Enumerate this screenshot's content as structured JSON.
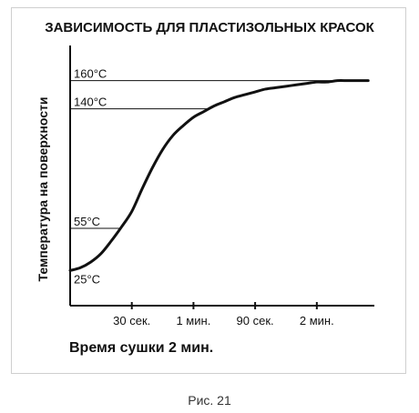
{
  "chart_data": {
    "type": "line",
    "title": "ЗАВИСИМОСТЬ ДЛЯ  ПЛАСТИЗОЛЬНЫХ КРАСОК",
    "xlabel": "Время сушки 2 мин.",
    "ylabel": "Температура на поверхности",
    "x_unit": "s",
    "y_unit": "°C",
    "xlim": [
      0,
      148
    ],
    "ylim": [
      0,
      185
    ],
    "grid": false,
    "x_ticks": [
      {
        "value": 30,
        "label": "30 сек."
      },
      {
        "value": 60,
        "label": "1 мин."
      },
      {
        "value": 90,
        "label": "90 сек."
      },
      {
        "value": 120,
        "label": "2 мин."
      }
    ],
    "reference_lines": [
      {
        "value": 160,
        "label": "160°C"
      },
      {
        "value": 140,
        "label": "140°C"
      },
      {
        "value": 55,
        "label": "55°C"
      },
      {
        "value": 25,
        "label": "25°C"
      }
    ],
    "series": [
      {
        "x": [
          0,
          5,
          10,
          15,
          20,
          25,
          30,
          35,
          40,
          45,
          50,
          55,
          60,
          65,
          70,
          75,
          80,
          85,
          90,
          95,
          100,
          105,
          110,
          115,
          120,
          125,
          130,
          135,
          140,
          145
        ],
        "values": [
          25,
          27,
          31,
          37,
          46,
          56,
          67,
          83,
          98,
          111,
          121,
          128,
          134,
          138,
          142,
          145,
          148,
          150,
          152,
          154,
          155,
          156,
          157,
          158,
          159,
          159,
          160,
          160,
          160,
          160
        ]
      }
    ]
  },
  "caption": "Рис. 21",
  "colors": {
    "ink": "#111111",
    "frame": "#cfcfcf"
  }
}
